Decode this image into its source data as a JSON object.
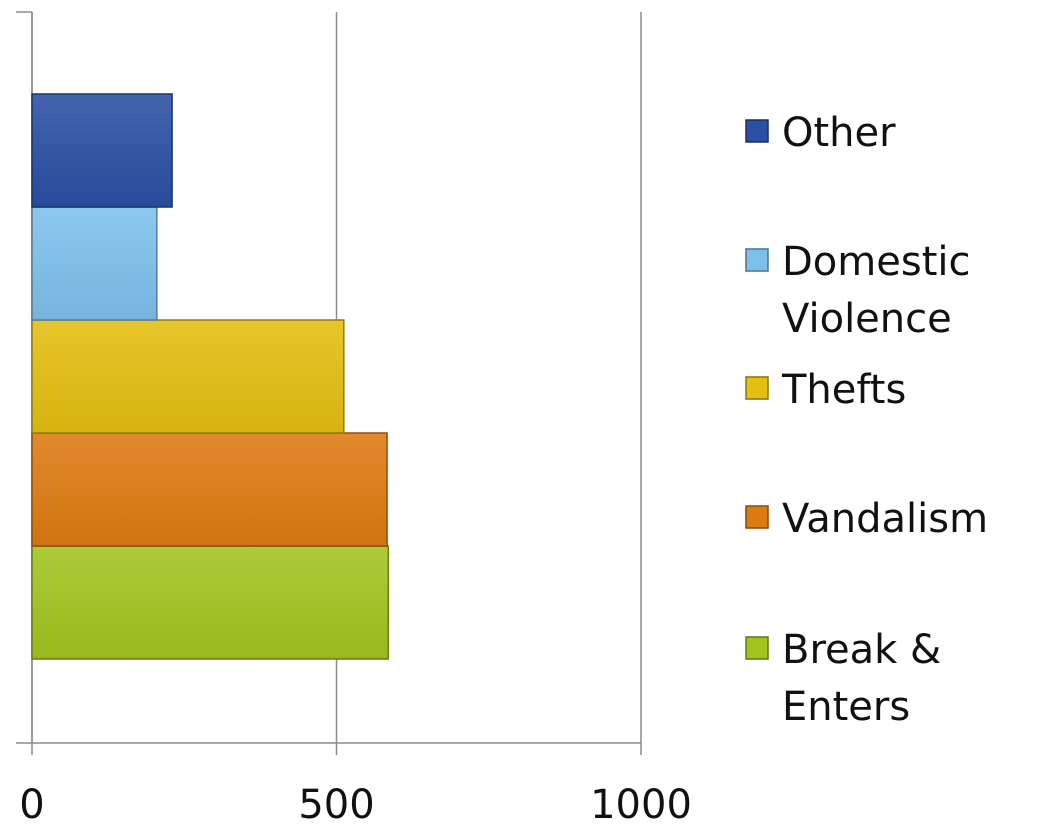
{
  "chart_data": {
    "type": "bar",
    "orientation": "horizontal",
    "stacked": false,
    "categories": [
      ""
    ],
    "series": [
      {
        "name": "Break & Enters",
        "values": [
          585
        ],
        "color": "#A2C41E"
      },
      {
        "name": "Vandalism",
        "values": [
          583
        ],
        "color": "#DD7A10"
      },
      {
        "name": "Thefts",
        "values": [
          512
        ],
        "color": "#E4BE10"
      },
      {
        "name": "Domestic Violence",
        "values": [
          205
        ],
        "color": "#7EC0EC"
      },
      {
        "name": "Other",
        "values": [
          230
        ],
        "color": "#2B4FA3"
      }
    ],
    "xlim": [
      0,
      1000
    ],
    "xticks": [
      0,
      500,
      1000
    ],
    "xtick_labels": [
      "0",
      "500",
      "1000"
    ],
    "grid": {
      "vertical": true,
      "color": "#8C8C8C"
    },
    "legend": {
      "position": "right",
      "items": [
        {
          "lines": [
            "Other"
          ],
          "color": "#2B4FA3"
        },
        {
          "lines": [
            "Domestic",
            "Violence"
          ],
          "color": "#7EC0EC"
        },
        {
          "lines": [
            "Thefts"
          ],
          "color": "#E4BE10"
        },
        {
          "lines": [
            "Vandalism"
          ],
          "color": "#DD7A10"
        },
        {
          "lines": [
            "Break &",
            "Enters"
          ],
          "color": "#A2C41E"
        }
      ]
    }
  }
}
